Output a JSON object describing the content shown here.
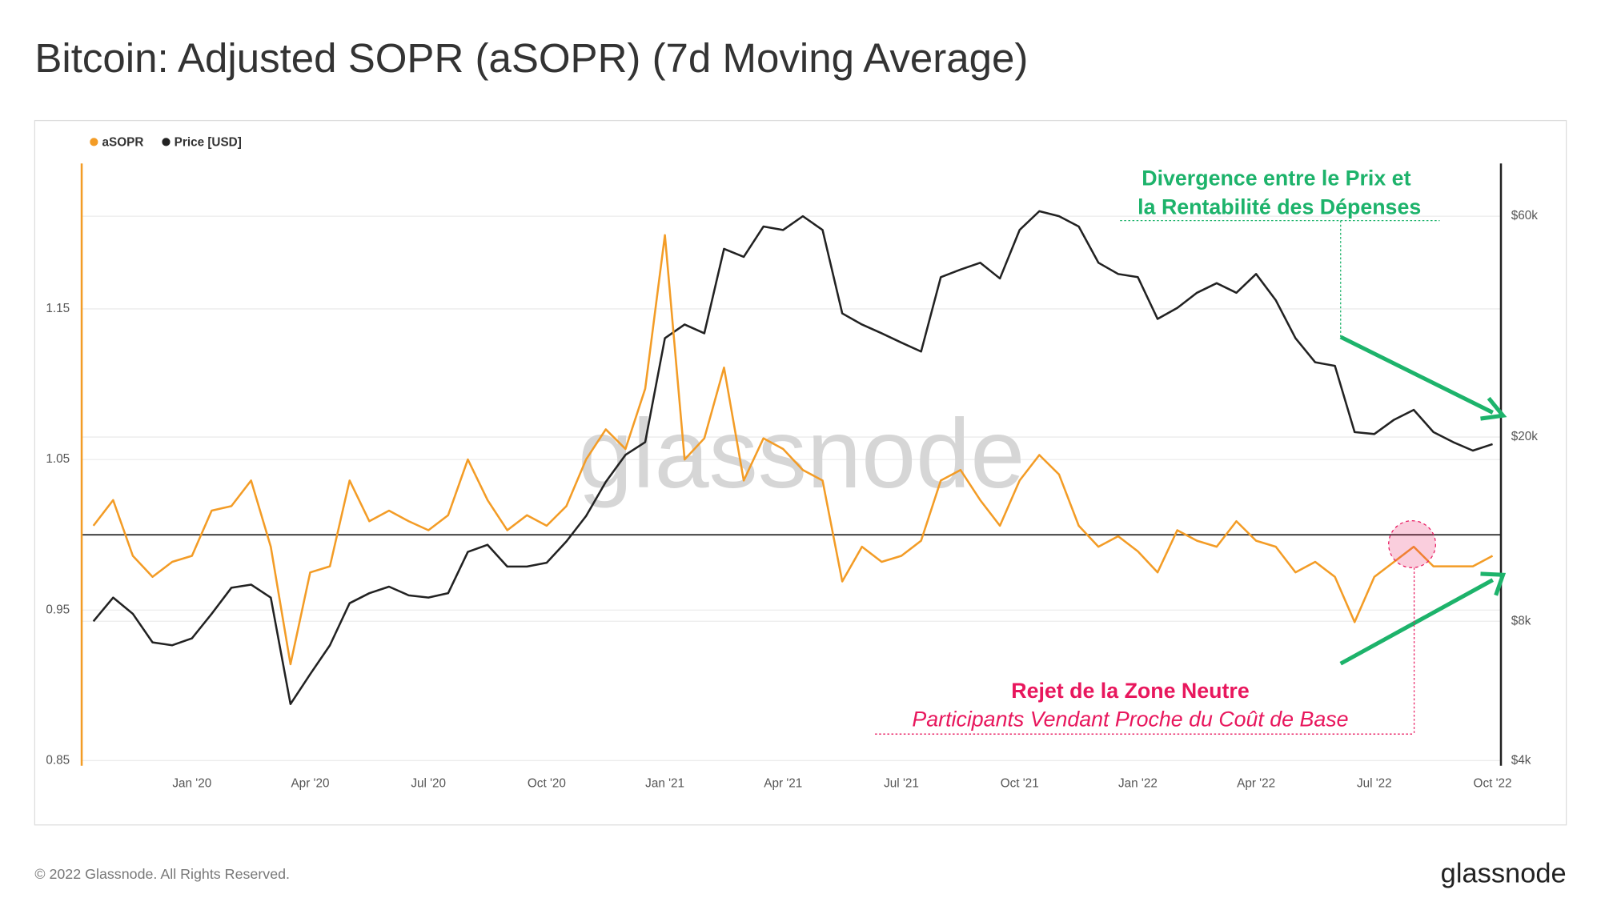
{
  "chart_data": {
    "type": "line",
    "title": "Bitcoin: Adjusted SOPR (aSOPR) (7d Moving Average)",
    "categories": [
      null,
      null,
      null,
      null,
      null,
      "Jan '20",
      null,
      null,
      null,
      null,
      null,
      "Apr '20",
      null,
      null,
      null,
      null,
      null,
      "Jul '20",
      null,
      null,
      null,
      null,
      null,
      "Oct '20",
      null,
      null,
      null,
      null,
      null,
      "Jan '21",
      null,
      null,
      null,
      null,
      null,
      "Apr '21",
      null,
      null,
      null,
      null,
      null,
      "Jul '21",
      null,
      null,
      null,
      null,
      null,
      "Oct '21",
      null,
      null,
      null,
      null,
      null,
      "Jan '22",
      null,
      null,
      null,
      null,
      null,
      "Apr '22",
      null,
      null,
      null,
      null,
      null,
      "Jul '22",
      null,
      null,
      null,
      null,
      null,
      "Oct '22"
    ],
    "series": [
      {
        "name": "aSOPR",
        "color": "#f39c26",
        "axis": "y",
        "values": [
          1.006,
          1.023,
          0.986,
          0.972,
          0.982,
          0.986,
          1.016,
          1.019,
          1.036,
          0.992,
          0.914,
          0.975,
          0.979,
          1.036,
          1.009,
          1.016,
          1.009,
          1.003,
          1.013,
          1.05,
          1.023,
          1.003,
          1.013,
          1.006,
          1.019,
          1.05,
          1.07,
          1.057,
          1.097,
          1.199,
          1.05,
          1.064,
          1.111,
          1.036,
          1.064,
          1.057,
          1.043,
          1.036,
          0.969,
          0.992,
          0.982,
          0.986,
          0.996,
          1.036,
          1.043,
          1.023,
          1.006,
          1.036,
          1.053,
          1.04,
          1.006,
          0.992,
          0.999,
          0.989,
          0.975,
          1.003,
          0.996,
          0.992,
          1.009,
          0.996,
          0.992,
          0.975,
          0.982,
          0.972,
          0.942,
          0.972,
          0.982,
          0.992,
          0.979,
          0.979,
          0.979,
          0.986
        ]
      },
      {
        "name": "Price [USD]",
        "color": "#222222",
        "axis": "y2",
        "values": [
          8000,
          9000,
          8300,
          7200,
          7100,
          7350,
          8300,
          9450,
          9600,
          9000,
          5300,
          6150,
          7100,
          8750,
          9200,
          9500,
          9100,
          9000,
          9200,
          11300,
          11700,
          10500,
          10500,
          10700,
          11900,
          13500,
          16000,
          18300,
          19500,
          32700,
          35000,
          33500,
          51000,
          49000,
          57000,
          56000,
          60000,
          56000,
          37000,
          35000,
          33500,
          32000,
          30600,
          44300,
          46000,
          47600,
          44000,
          56000,
          61500,
          60000,
          57000,
          47600,
          45000,
          44300,
          36000,
          38000,
          41000,
          43000,
          41000,
          45000,
          39500,
          32700,
          29000,
          28500,
          20500,
          20300,
          21800,
          22900,
          20500,
          19500,
          18700,
          19300
        ]
      }
    ],
    "ylim": [
      0.85,
      1.25
    ],
    "yticks": [
      0.85,
      0.95,
      1.05,
      1.15
    ],
    "y2lim": [
      4000,
      80000
    ],
    "y2log": true,
    "y2ticks": [
      {
        "value": 4000,
        "label": "$4k"
      },
      {
        "value": 8000,
        "label": "$8k"
      },
      {
        "value": 20000,
        "label": "$20k"
      },
      {
        "value": 60000,
        "label": "$60k"
      }
    ],
    "hline": 1,
    "grid": true,
    "legend": "top-left",
    "watermark": "glassnode",
    "annotations": [
      "Divergence entre le Prix et",
      "la Rentabilité des Dépenses",
      "Rejet de la Zone Neutre",
      "Participants Vendant Proche du Coût de Base"
    ]
  },
  "footer": {
    "copyright": "© 2022 Glassnode. All Rights Reserved.",
    "logo": "glassnode"
  }
}
